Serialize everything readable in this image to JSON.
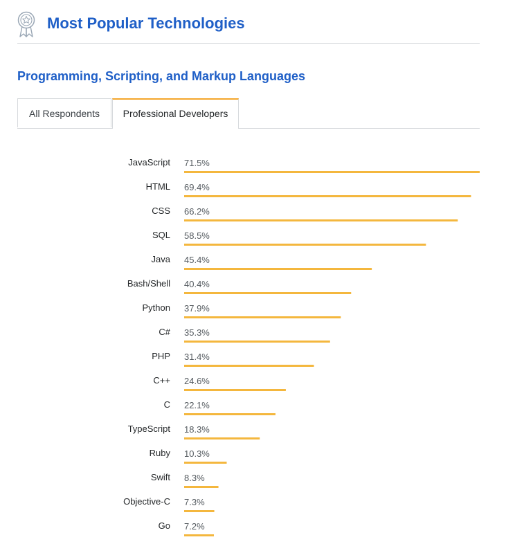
{
  "header": {
    "title": "Most Popular Technologies",
    "icon": "award-badge-icon"
  },
  "section": {
    "title": "Programming, Scripting, and Markup Languages"
  },
  "tabs": [
    {
      "label": "All Respondents",
      "active": false
    },
    {
      "label": "Professional Developers",
      "active": true
    }
  ],
  "colors": {
    "accent": "#f4a62a",
    "title": "#1f5fc7",
    "bar": "#f4b73e",
    "divider": "#d6d9dc"
  },
  "chart_data": {
    "type": "bar",
    "orientation": "horizontal",
    "categories": [
      "JavaScript",
      "HTML",
      "CSS",
      "SQL",
      "Java",
      "Bash/Shell",
      "Python",
      "C#",
      "PHP",
      "C++",
      "C",
      "TypeScript",
      "Ruby",
      "Swift",
      "Objective-C",
      "Go"
    ],
    "values": [
      71.5,
      69.4,
      66.2,
      58.5,
      45.4,
      40.4,
      37.9,
      35.3,
      31.4,
      24.6,
      22.1,
      18.3,
      10.3,
      8.3,
      7.3,
      7.2
    ],
    "value_suffix": "%",
    "xlim": [
      0,
      71.5
    ],
    "grid": false,
    "legend": "none"
  }
}
